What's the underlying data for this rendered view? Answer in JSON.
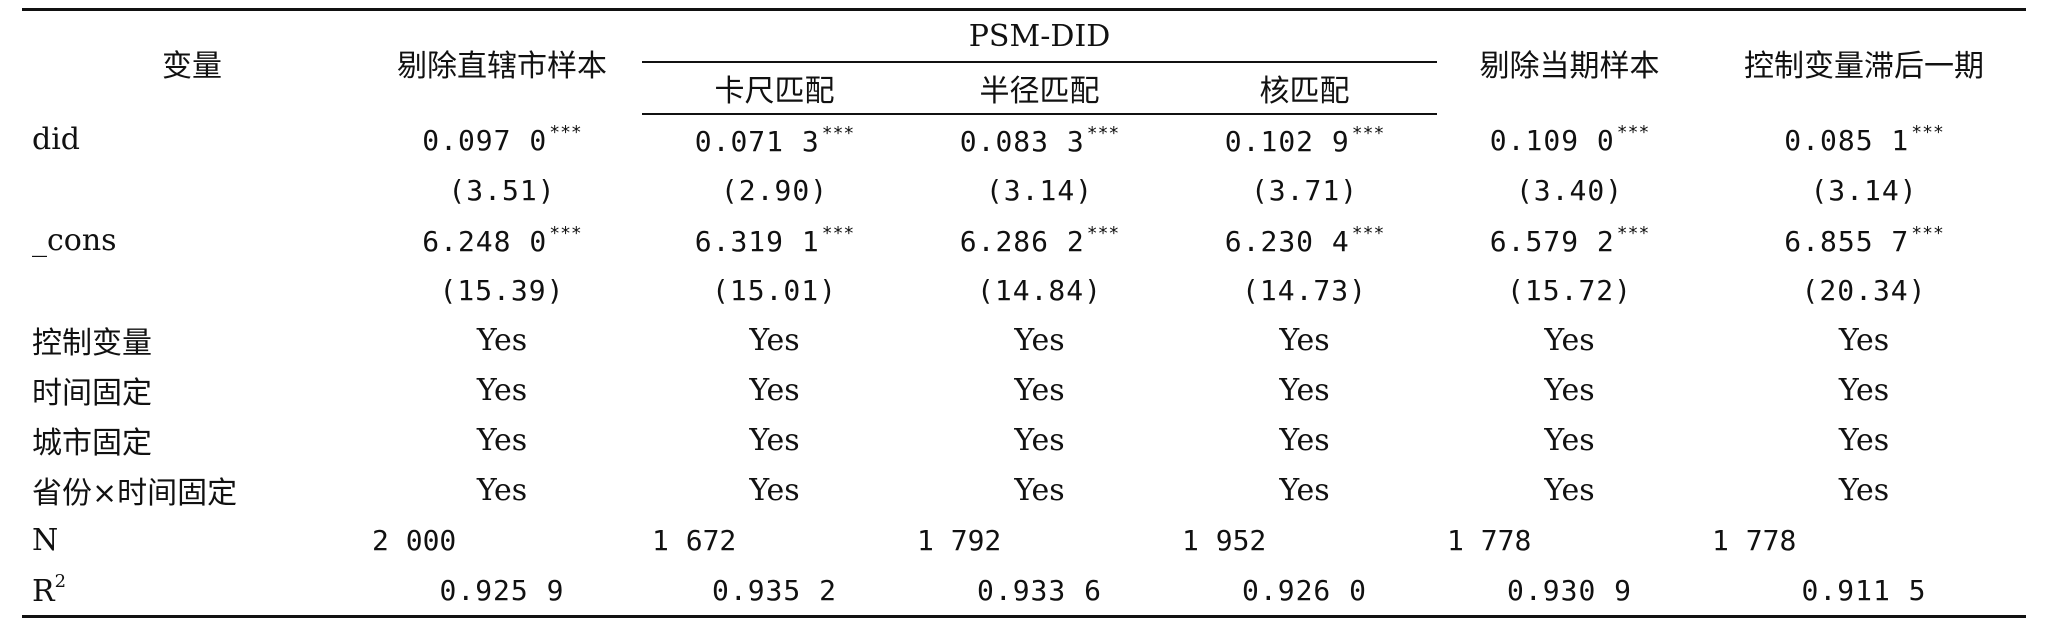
{
  "header": {
    "variable": "变量",
    "col_excl_municipality": "剔除直辖市样本",
    "psm_did": "PSM-DID",
    "caliper": "卡尺匹配",
    "radius": "半径匹配",
    "kernel": "核匹配",
    "col_excl_current": "剔除当期样本",
    "col_lag_controls": "控制变量滞后一期"
  },
  "rows": {
    "did": {
      "label": "did",
      "coefs": [
        "0.097 0",
        "0.071 3",
        "0.083 3",
        "0.102 9",
        "0.109 0",
        "0.085 1"
      ],
      "stars": [
        "***",
        "***",
        "***",
        "***",
        "***",
        "***"
      ],
      "tvals": [
        "(3.51)",
        "(2.90)",
        "(3.14)",
        "(3.71)",
        "(3.40)",
        "(3.14)"
      ]
    },
    "cons": {
      "label": "_cons",
      "coefs": [
        "6.248 0",
        "6.319 1",
        "6.286 2",
        "6.230 4",
        "6.579 2",
        "6.855 7"
      ],
      "stars": [
        "***",
        "***",
        "***",
        "***",
        "***",
        "***"
      ],
      "tvals": [
        "(15.39)",
        "(15.01)",
        "(14.84)",
        "(14.73)",
        "(15.72)",
        "(20.34)"
      ]
    },
    "controls": {
      "label": "控制变量",
      "values": [
        "Yes",
        "Yes",
        "Yes",
        "Yes",
        "Yes",
        "Yes"
      ]
    },
    "time_fe": {
      "label": "时间固定",
      "values": [
        "Yes",
        "Yes",
        "Yes",
        "Yes",
        "Yes",
        "Yes"
      ]
    },
    "city_fe": {
      "label": "城市固定",
      "values": [
        "Yes",
        "Yes",
        "Yes",
        "Yes",
        "Yes",
        "Yes"
      ]
    },
    "prov_time_fe": {
      "label": "省份×时间固定",
      "values": [
        "Yes",
        "Yes",
        "Yes",
        "Yes",
        "Yes",
        "Yes"
      ]
    },
    "n": {
      "label": "N",
      "values": [
        "2 000",
        "1 672",
        "1 792",
        "1 952",
        "1 778",
        "1 778"
      ]
    },
    "r2": {
      "label": "R",
      "label_sup": "2",
      "values": [
        "0.925 9",
        "0.935 2",
        "0.933 6",
        "0.926 0",
        "0.930 9",
        "0.911 5"
      ]
    }
  }
}
